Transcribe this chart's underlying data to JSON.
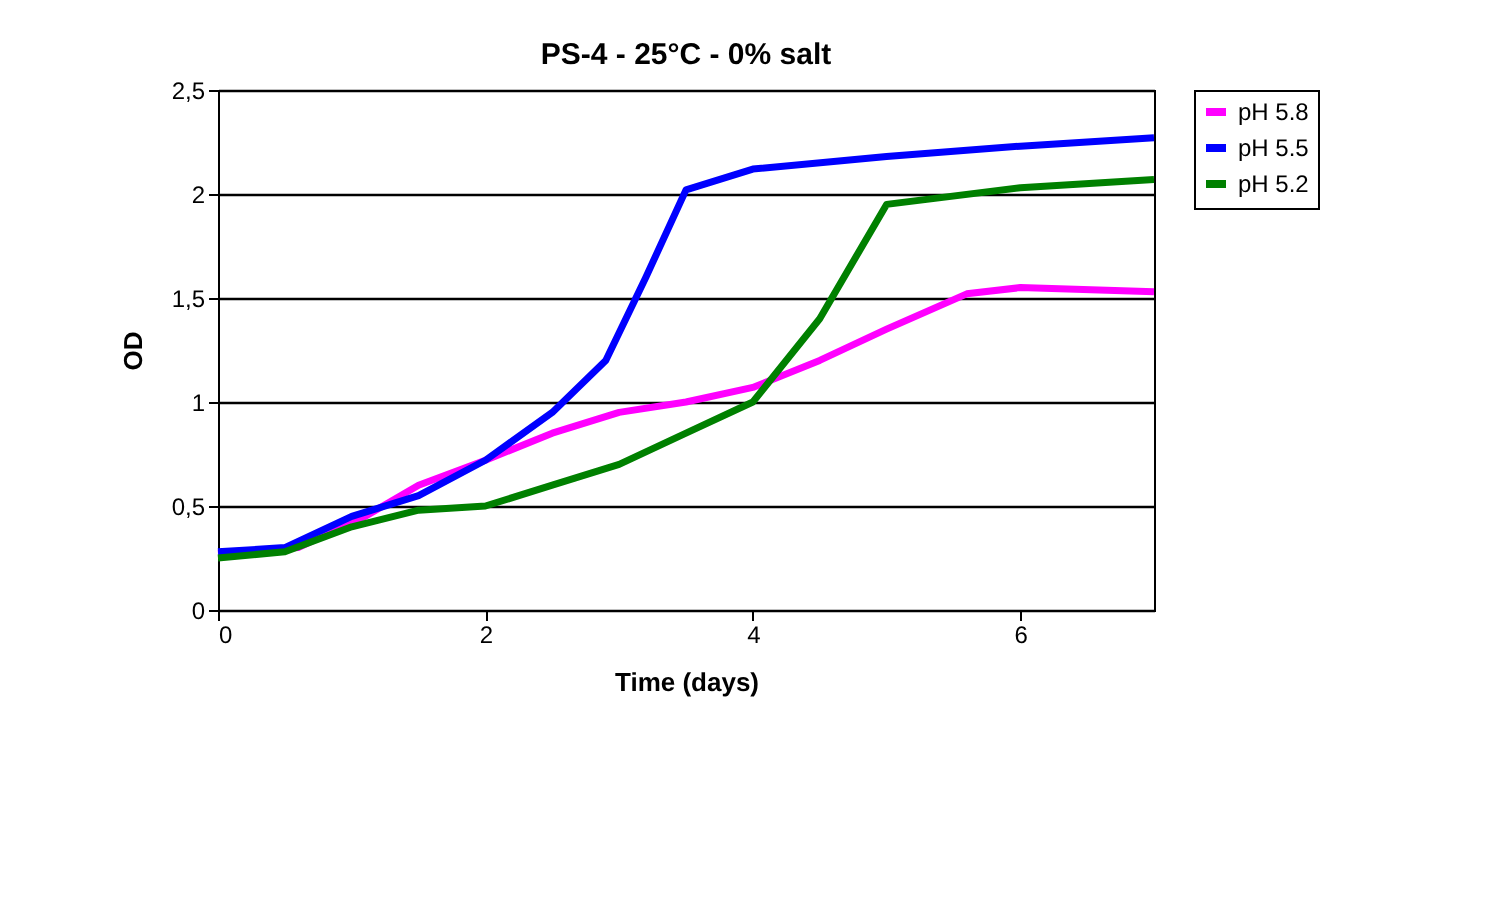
{
  "chart_data": {
    "type": "line",
    "title": "PS-4 - 25°C - 0% salt",
    "xlabel": "Time (days)",
    "ylabel": "OD",
    "xlim": [
      0,
      7
    ],
    "xticks": [
      0,
      2,
      4,
      6
    ],
    "ylim": [
      0,
      2.5
    ],
    "yticks": [
      0,
      {
        "value": 0.5,
        "label": "0,5"
      },
      1,
      {
        "value": 1.5,
        "label": "1,5"
      },
      2,
      {
        "value": 2.5,
        "label": "2,5"
      }
    ],
    "grid": "y",
    "legend": "right",
    "marker": "none",
    "line_style": "solid",
    "series": [
      {
        "name": "pH 5.8",
        "color": "#ff00ff",
        "x": [
          0,
          0.6,
          1.1,
          1.5,
          2,
          2.5,
          3,
          3.5,
          4,
          4.5,
          5,
          5.6,
          6,
          7
        ],
        "values": [
          0.27,
          0.3,
          0.45,
          0.6,
          0.72,
          0.85,
          0.95,
          1.0,
          1.07,
          1.2,
          1.35,
          1.52,
          1.55,
          1.53
        ]
      },
      {
        "name": "pH 5.5",
        "color": "#0000ff",
        "x": [
          0,
          0.5,
          1,
          1.5,
          2,
          2.5,
          2.9,
          3.2,
          3.5,
          4,
          5,
          6,
          7
        ],
        "values": [
          0.28,
          0.3,
          0.45,
          0.55,
          0.72,
          0.95,
          1.2,
          1.6,
          2.02,
          2.12,
          2.18,
          2.23,
          2.27
        ]
      },
      {
        "name": "pH 5.2",
        "color": "#008000",
        "x": [
          0,
          0.5,
          1,
          1.5,
          2,
          2.5,
          3,
          3.5,
          4,
          4.5,
          5,
          6,
          7
        ],
        "values": [
          0.25,
          0.28,
          0.4,
          0.48,
          0.5,
          0.6,
          0.7,
          0.85,
          1.0,
          1.4,
          1.95,
          2.03,
          2.07
        ]
      }
    ]
  }
}
